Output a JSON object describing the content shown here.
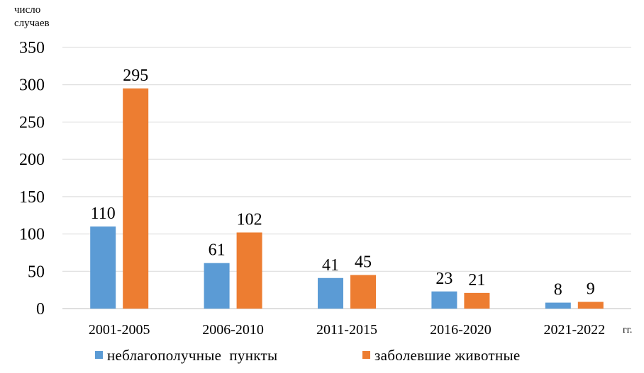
{
  "chart_data": {
    "type": "bar",
    "ylabel_lines": [
      "число",
      "случаев"
    ],
    "x_unit": "гг.",
    "categories": [
      "2001-2005",
      "2006-2010",
      "2011-2015",
      "2016-2020",
      "2021-2022"
    ],
    "series": [
      {
        "name": "неблагополучные  пункты",
        "color": "#5B9BD5",
        "values": [
          110,
          61,
          41,
          23,
          8
        ]
      },
      {
        "name": "заболевшие животные",
        "color": "#ED7D31",
        "values": [
          295,
          102,
          45,
          21,
          9
        ]
      }
    ],
    "ylim": [
      0,
      350
    ],
    "yticks": [
      0,
      50,
      100,
      150,
      200,
      250,
      300,
      350
    ],
    "grid": true,
    "legend_position": "bottom"
  }
}
